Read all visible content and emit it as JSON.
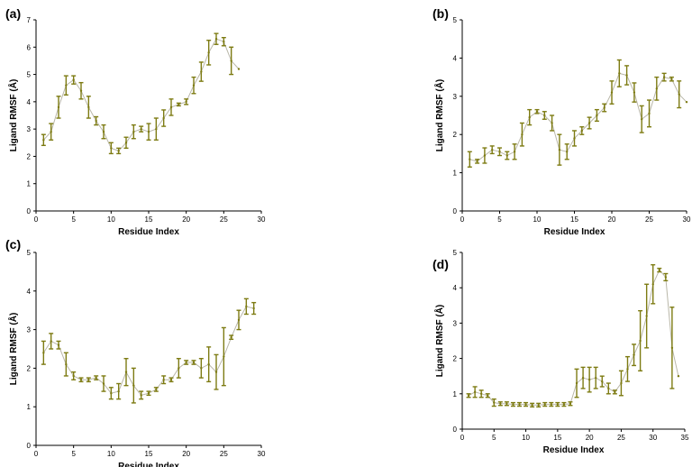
{
  "chart_data": [
    {
      "type": "line",
      "panel_label": "(a)",
      "xlabel": "Residue Index",
      "ylabel": "Ligand RMSF (Å)",
      "xlim": [
        0,
        30
      ],
      "ylim": [
        0,
        7
      ],
      "xticks": [
        0,
        5,
        10,
        15,
        20,
        25,
        30
      ],
      "yticks": [
        0,
        1,
        2,
        3,
        4,
        5,
        6,
        7
      ],
      "grid": false,
      "series": [
        {
          "x": [
            1,
            2,
            3,
            4,
            5,
            6,
            7,
            8,
            9,
            10,
            11,
            12,
            13,
            14,
            15,
            16,
            17,
            18,
            19,
            20,
            21,
            22,
            23,
            24,
            25,
            26,
            27
          ],
          "y": [
            2.6,
            2.9,
            3.8,
            4.6,
            4.8,
            4.4,
            3.8,
            3.3,
            2.9,
            2.3,
            2.2,
            2.5,
            2.9,
            3.0,
            2.9,
            3.0,
            3.4,
            3.8,
            3.9,
            4.0,
            4.6,
            5.1,
            5.8,
            6.3,
            6.2,
            5.5,
            5.2
          ],
          "err": [
            0.2,
            0.3,
            0.4,
            0.35,
            0.15,
            0.3,
            0.4,
            0.15,
            0.25,
            0.2,
            0.1,
            0.2,
            0.25,
            0.1,
            0.3,
            0.4,
            0.3,
            0.3,
            0.05,
            0.1,
            0.3,
            0.35,
            0.45,
            0.2,
            0.15,
            0.5,
            0.0
          ]
        }
      ]
    },
    {
      "type": "line",
      "panel_label": "(b)",
      "xlabel": "Residue Index",
      "ylabel": "Ligand RMSF (Å)",
      "xlim": [
        0,
        30
      ],
      "ylim": [
        0,
        5
      ],
      "xticks": [
        0,
        5,
        10,
        15,
        20,
        25,
        30
      ],
      "yticks": [
        0,
        1,
        2,
        3,
        4,
        5
      ],
      "grid": false,
      "series": [
        {
          "x": [
            1,
            2,
            3,
            4,
            5,
            6,
            7,
            8,
            9,
            10,
            11,
            12,
            13,
            14,
            15,
            16,
            17,
            18,
            19,
            20,
            21,
            22,
            23,
            24,
            25,
            26,
            27,
            28,
            29,
            30
          ],
          "y": [
            1.35,
            1.3,
            1.45,
            1.6,
            1.55,
            1.45,
            1.55,
            2.0,
            2.45,
            2.6,
            2.5,
            2.3,
            1.6,
            1.55,
            1.9,
            2.1,
            2.3,
            2.5,
            2.7,
            3.1,
            3.6,
            3.55,
            3.1,
            2.4,
            2.55,
            3.2,
            3.5,
            3.45,
            3.05,
            2.85
          ],
          "err": [
            0.2,
            0.05,
            0.2,
            0.1,
            0.1,
            0.1,
            0.2,
            0.3,
            0.2,
            0.05,
            0.1,
            0.2,
            0.4,
            0.2,
            0.2,
            0.1,
            0.15,
            0.15,
            0.1,
            0.3,
            0.35,
            0.25,
            0.25,
            0.35,
            0.35,
            0.3,
            0.1,
            0.05,
            0.35,
            0.0
          ]
        }
      ]
    },
    {
      "type": "line",
      "panel_label": "(c)",
      "xlabel": "Residue Index",
      "ylabel": "Ligand RMSF (Å)",
      "xlim": [
        0,
        30
      ],
      "ylim": [
        0,
        5
      ],
      "xticks": [
        0,
        5,
        10,
        15,
        20,
        25,
        30
      ],
      "yticks": [
        0,
        1,
        2,
        3,
        4,
        5
      ],
      "grid": false,
      "series": [
        {
          "x": [
            1,
            2,
            3,
            4,
            5,
            6,
            7,
            8,
            9,
            10,
            11,
            12,
            13,
            14,
            15,
            16,
            17,
            18,
            19,
            20,
            21,
            22,
            23,
            24,
            25,
            26,
            27,
            28,
            29
          ],
          "y": [
            2.4,
            2.7,
            2.6,
            2.1,
            1.8,
            1.7,
            1.7,
            1.75,
            1.6,
            1.35,
            1.4,
            1.9,
            1.55,
            1.3,
            1.35,
            1.45,
            1.7,
            1.7,
            2.0,
            2.15,
            2.15,
            2.0,
            2.1,
            1.9,
            2.3,
            2.8,
            3.25,
            3.6,
            3.55
          ],
          "err": [
            0.3,
            0.2,
            0.1,
            0.3,
            0.1,
            0.05,
            0.05,
            0.05,
            0.2,
            0.15,
            0.2,
            0.35,
            0.45,
            0.1,
            0.05,
            0.05,
            0.1,
            0.05,
            0.25,
            0.05,
            0.05,
            0.25,
            0.45,
            0.45,
            0.75,
            0.05,
            0.25,
            0.2,
            0.15
          ]
        }
      ]
    },
    {
      "type": "line",
      "panel_label": "(d)",
      "xlabel": "Residue Index",
      "ylabel": "Ligand RMSF (Å)",
      "xlim": [
        0,
        35
      ],
      "ylim": [
        0,
        5
      ],
      "xticks": [
        0,
        5,
        10,
        15,
        20,
        25,
        30,
        35
      ],
      "yticks": [
        0,
        1,
        2,
        3,
        4,
        5
      ],
      "grid": false,
      "series": [
        {
          "x": [
            1,
            2,
            3,
            4,
            5,
            6,
            7,
            8,
            9,
            10,
            11,
            12,
            13,
            14,
            15,
            16,
            17,
            18,
            19,
            20,
            21,
            22,
            23,
            24,
            25,
            26,
            27,
            28,
            29,
            30,
            31,
            32,
            33,
            34
          ],
          "y": [
            0.95,
            1.05,
            1.0,
            0.95,
            0.75,
            0.72,
            0.72,
            0.7,
            0.7,
            0.7,
            0.68,
            0.68,
            0.7,
            0.7,
            0.7,
            0.7,
            0.72,
            1.3,
            1.45,
            1.4,
            1.45,
            1.35,
            1.15,
            1.05,
            1.3,
            1.7,
            2.1,
            2.5,
            3.2,
            4.1,
            4.5,
            4.3,
            2.3,
            1.5
          ],
          "err": [
            0.05,
            0.15,
            0.1,
            0.05,
            0.1,
            0.05,
            0.05,
            0.05,
            0.05,
            0.05,
            0.05,
            0.05,
            0.05,
            0.05,
            0.05,
            0.05,
            0.05,
            0.4,
            0.3,
            0.35,
            0.3,
            0.15,
            0.15,
            0.05,
            0.35,
            0.35,
            0.3,
            0.85,
            0.9,
            0.55,
            0.05,
            0.1,
            1.15,
            0.0
          ]
        }
      ]
    }
  ],
  "colors": {
    "marker": "#7d7b12",
    "line": "#b9b7a8",
    "axis": "#000000"
  }
}
